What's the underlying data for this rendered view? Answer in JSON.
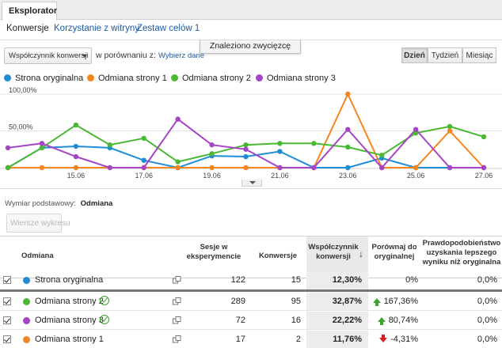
{
  "tabs": {
    "active": "Eksplorator"
  },
  "subnav": {
    "items": [
      "Konwersje",
      "Korzystanie z witryny",
      "Zestaw celów 1"
    ]
  },
  "banner": "Znaleziono zwycięzcę",
  "toolbar": {
    "metric_select": "Współczynnik konwersji",
    "compare_label": "w porównaniu z:",
    "compare_link": "Wybierz dane",
    "ranges": [
      "Dzień",
      "Tydzień",
      "Miesiąc"
    ],
    "active_range": "Dzień"
  },
  "colors": {
    "original": "#1f8dd6",
    "variant1": "#f6841f",
    "variant2": "#4bb834",
    "variant3": "#a544c4",
    "winner": "#3aa52a",
    "negative": "#d62020"
  },
  "legend": [
    "Strona oryginalna",
    "Odmiana strony 1",
    "Odmiana strony 2",
    "Odmiana strony 3"
  ],
  "chart_data": {
    "type": "line",
    "y_tick_labels": [
      "100,00%",
      "50,00%"
    ],
    "ylim": [
      0,
      100
    ],
    "x_tick_labels": [
      "15.06",
      "17.06",
      "19.06",
      "21.06",
      "23.06",
      "25.06",
      "27.06"
    ],
    "x_count": 15,
    "series": [
      {
        "name": "Strona oryginalna",
        "color": "#1f8dd6",
        "values": [
          0,
          27,
          29,
          27,
          10,
          0,
          16,
          15,
          22,
          0,
          0,
          13,
          0,
          0,
          0
        ]
      },
      {
        "name": "Odmiana strony 1",
        "color": "#f6841f",
        "values": [
          0,
          0,
          0,
          0,
          0,
          0,
          0,
          0,
          0,
          0,
          100,
          0,
          0,
          50,
          0
        ]
      },
      {
        "name": "Odmiana strony 2",
        "color": "#4bb834",
        "values": [
          0,
          27,
          58,
          31,
          40,
          8,
          19,
          31,
          33,
          33,
          28,
          17,
          47,
          56,
          42
        ]
      },
      {
        "name": "Odmiana strony 3",
        "color": "#a544c4",
        "values": [
          27,
          33,
          15,
          0,
          0,
          66,
          31,
          25,
          0,
          0,
          52,
          0,
          52,
          0,
          0
        ]
      }
    ]
  },
  "dimension": {
    "label": "Wymiar podstawowy:",
    "value": "Odmiana"
  },
  "graph_rows_label": "Wiersze wykresu",
  "table": {
    "headers": {
      "variant": "Odmiana",
      "sessions": "Sesje w eksperymencie",
      "conversions": "Konwersje",
      "conv_rate": "Współczynnik konwersji",
      "compare": "Porównaj do oryginalnej",
      "probability": "Prawdopodobieństwo uzyskania lepszego wyniku niż oryginalna"
    },
    "sort_arrow": "↓",
    "rows": [
      {
        "name": "Strona oryginalna",
        "color": "#1f8dd6",
        "winner": false,
        "sessions": "122",
        "conversions": "15",
        "conv_rate": "12,30%",
        "compare": "0%",
        "compare_dir": "none",
        "probability": "0,0%"
      },
      {
        "name": "Odmiana strony 2",
        "color": "#4bb834",
        "winner": true,
        "sessions": "289",
        "conversions": "95",
        "conv_rate": "32,87%",
        "compare": "167,36%",
        "compare_dir": "up",
        "probability": "0,0%"
      },
      {
        "name": "Odmiana strony 3",
        "color": "#a544c4",
        "winner": true,
        "sessions": "72",
        "conversions": "16",
        "conv_rate": "22,22%",
        "compare": "80,74%",
        "compare_dir": "up",
        "probability": "0,0%"
      },
      {
        "name": "Odmiana strony 1",
        "color": "#f6841f",
        "winner": false,
        "sessions": "17",
        "conversions": "2",
        "conv_rate": "11,76%",
        "compare": "-4,31%",
        "compare_dir": "down",
        "probability": "0,0%"
      }
    ]
  }
}
